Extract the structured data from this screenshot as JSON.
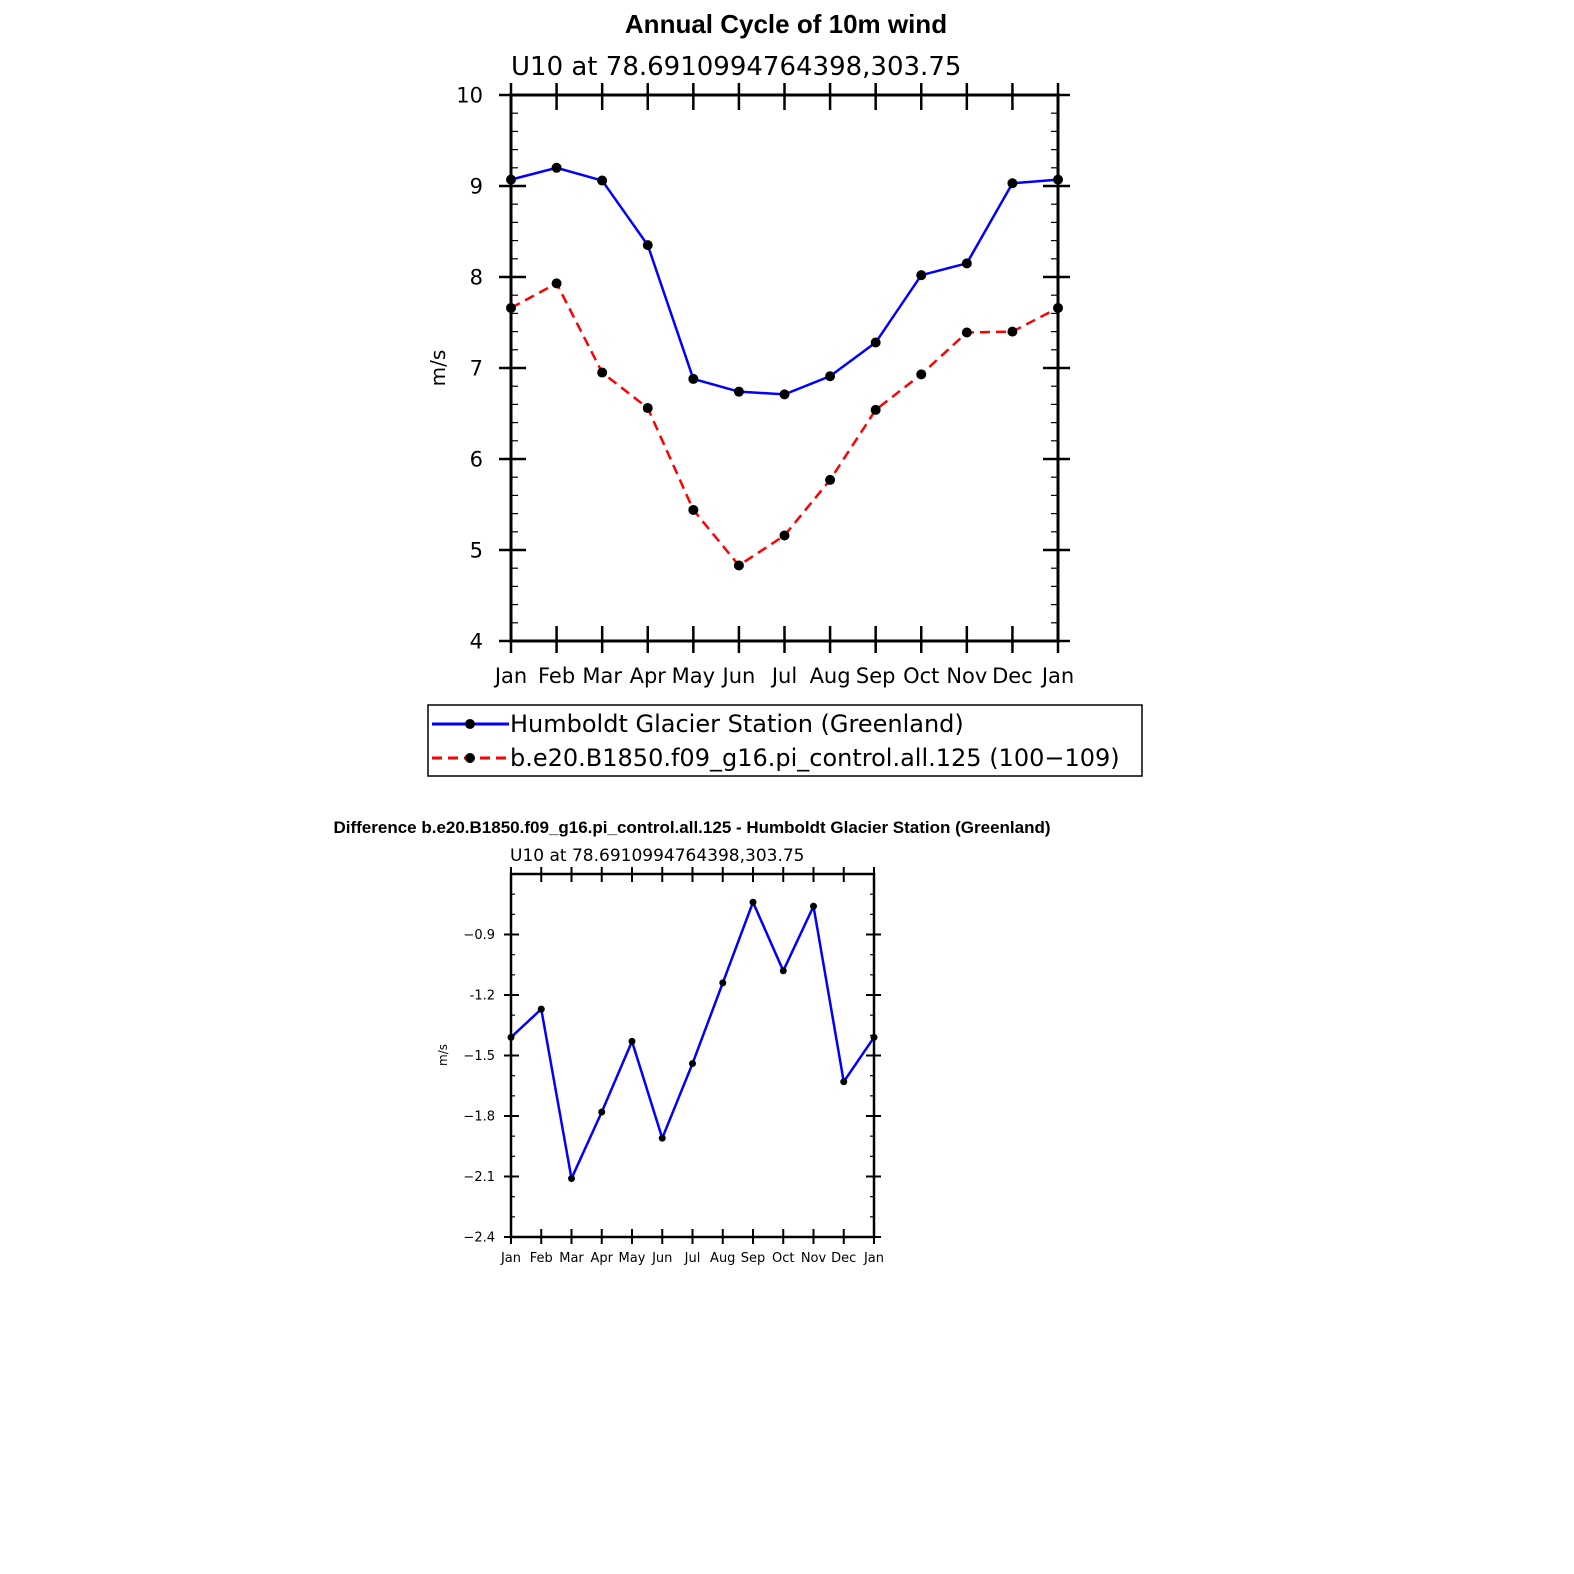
{
  "chart_data": [
    {
      "type": "line",
      "title": "Annual Cycle of 10m wind",
      "subtitle": "U10 at 78.6910994764398,303.75",
      "xlabel": "",
      "ylabel": "m/s",
      "categories": [
        "Jan",
        "Feb",
        "Mar",
        "Apr",
        "May",
        "Jun",
        "Jul",
        "Aug",
        "Sep",
        "Oct",
        "Nov",
        "Dec",
        "Jan"
      ],
      "ylim": [
        4,
        10
      ],
      "yticks": [
        "4",
        "5",
        "6",
        "7",
        "8",
        "9",
        "10"
      ],
      "series": [
        {
          "name": "Humboldt Glacier Station (Greenland)",
          "color": "#0000ff",
          "dash": "solid",
          "values": [
            9.07,
            9.2,
            9.06,
            8.35,
            6.88,
            6.74,
            6.71,
            6.91,
            7.28,
            8.02,
            8.15,
            9.03,
            9.07
          ]
        },
        {
          "name": "b.e20.B1850.f09_g16.pi_control.all.125 (100−109)",
          "color": "#ff0000",
          "dash": "dashed",
          "values": [
            7.66,
            7.93,
            6.95,
            6.56,
            5.44,
            4.83,
            5.16,
            5.77,
            6.54,
            6.93,
            7.39,
            7.4,
            7.66
          ]
        }
      ],
      "legend_position": "bottom"
    },
    {
      "type": "line",
      "title": "Difference b.e20.B1850.f09_g16.pi_control.all.125 - Humboldt Glacier Station (Greenland)",
      "subtitle": "U10 at 78.6910994764398,303.75",
      "xlabel": "",
      "ylabel": "m/s",
      "categories": [
        "Jan",
        "Feb",
        "Mar",
        "Apr",
        "May",
        "Jun",
        "Jul",
        "Aug",
        "Sep",
        "Oct",
        "Nov",
        "Dec",
        "Jan"
      ],
      "ylim": [
        -2.4,
        -0.6
      ],
      "yticks": [
        "−0.9",
        "-1.2",
        "−1.5",
        "−1.8",
        "−2.1",
        "−2.4"
      ],
      "ytick_values": [
        -0.9,
        -1.2,
        -1.5,
        -1.8,
        -2.1,
        -2.4
      ],
      "series": [
        {
          "name": "Difference",
          "color": "#0000ff",
          "dash": "solid",
          "values": [
            -1.41,
            -1.27,
            -2.11,
            -1.78,
            -1.43,
            -1.91,
            -1.54,
            -1.14,
            -0.74,
            -1.08,
            -0.76,
            -1.63,
            -1.41
          ]
        }
      ]
    }
  ]
}
